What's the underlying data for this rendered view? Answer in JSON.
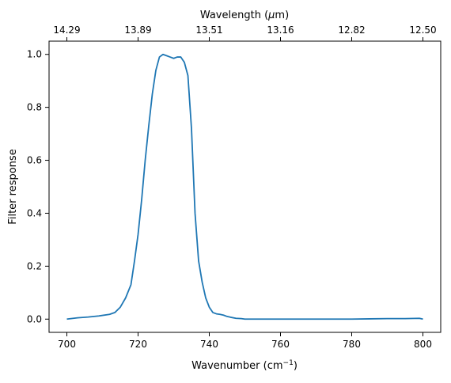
{
  "chart_data": {
    "type": "line",
    "title": "",
    "xlabel": "Wavenumber (cm",
    "xlabel_superscript": "−1",
    "xlabel_suffix": ")",
    "ylabel": "Filter response",
    "top_axis_label": "Wavelength (",
    "top_axis_label_symbol": "μ",
    "top_axis_label_suffix": "m)",
    "xlim": [
      695,
      805
    ],
    "ylim": [
      -0.05,
      1.05
    ],
    "x_ticks": [
      700,
      720,
      740,
      760,
      780,
      800
    ],
    "x_tick_labels": [
      "700",
      "720",
      "740",
      "760",
      "780",
      "800"
    ],
    "y_ticks": [
      0.0,
      0.2,
      0.4,
      0.6,
      0.8,
      1.0
    ],
    "y_tick_labels": [
      "0.0",
      "0.2",
      "0.4",
      "0.6",
      "0.8",
      "1.0"
    ],
    "top_ticks": [
      700,
      720,
      740,
      760,
      780,
      800
    ],
    "top_tick_labels": [
      "14.29",
      "13.89",
      "13.51",
      "13.16",
      "12.82",
      "12.50"
    ],
    "grid": false,
    "legend": "none",
    "series": [
      {
        "color": "#1f77b4",
        "x": [
          700,
          703,
          706,
          709,
          712,
          713.5,
          715,
          716.5,
          718,
          719,
          720,
          721,
          722,
          723,
          724,
          725,
          726,
          727,
          728,
          729,
          730,
          731,
          732,
          733,
          734,
          735,
          736,
          737,
          738,
          739,
          740,
          741,
          742,
          743,
          744,
          745,
          746,
          747.5,
          749,
          750,
          752,
          754,
          756,
          758,
          759.5,
          760,
          761,
          765,
          770,
          775,
          780,
          785,
          790,
          795,
          799,
          800
        ],
        "y": [
          0.0,
          0.005,
          0.008,
          0.012,
          0.018,
          0.025,
          0.045,
          0.08,
          0.13,
          0.22,
          0.32,
          0.45,
          0.6,
          0.73,
          0.85,
          0.94,
          0.99,
          1.0,
          0.995,
          0.99,
          0.985,
          0.99,
          0.99,
          0.97,
          0.92,
          0.72,
          0.4,
          0.22,
          0.14,
          0.08,
          0.045,
          0.025,
          0.02,
          0.018,
          0.015,
          0.01,
          0.007,
          0.003,
          0.002,
          0.0,
          0.0,
          0.0,
          0.0,
          0.0,
          0.0,
          0.0,
          0.0,
          0.0,
          0.0,
          0.0,
          0.0,
          0.001,
          0.002,
          0.002,
          0.003,
          0.0
        ]
      }
    ]
  }
}
